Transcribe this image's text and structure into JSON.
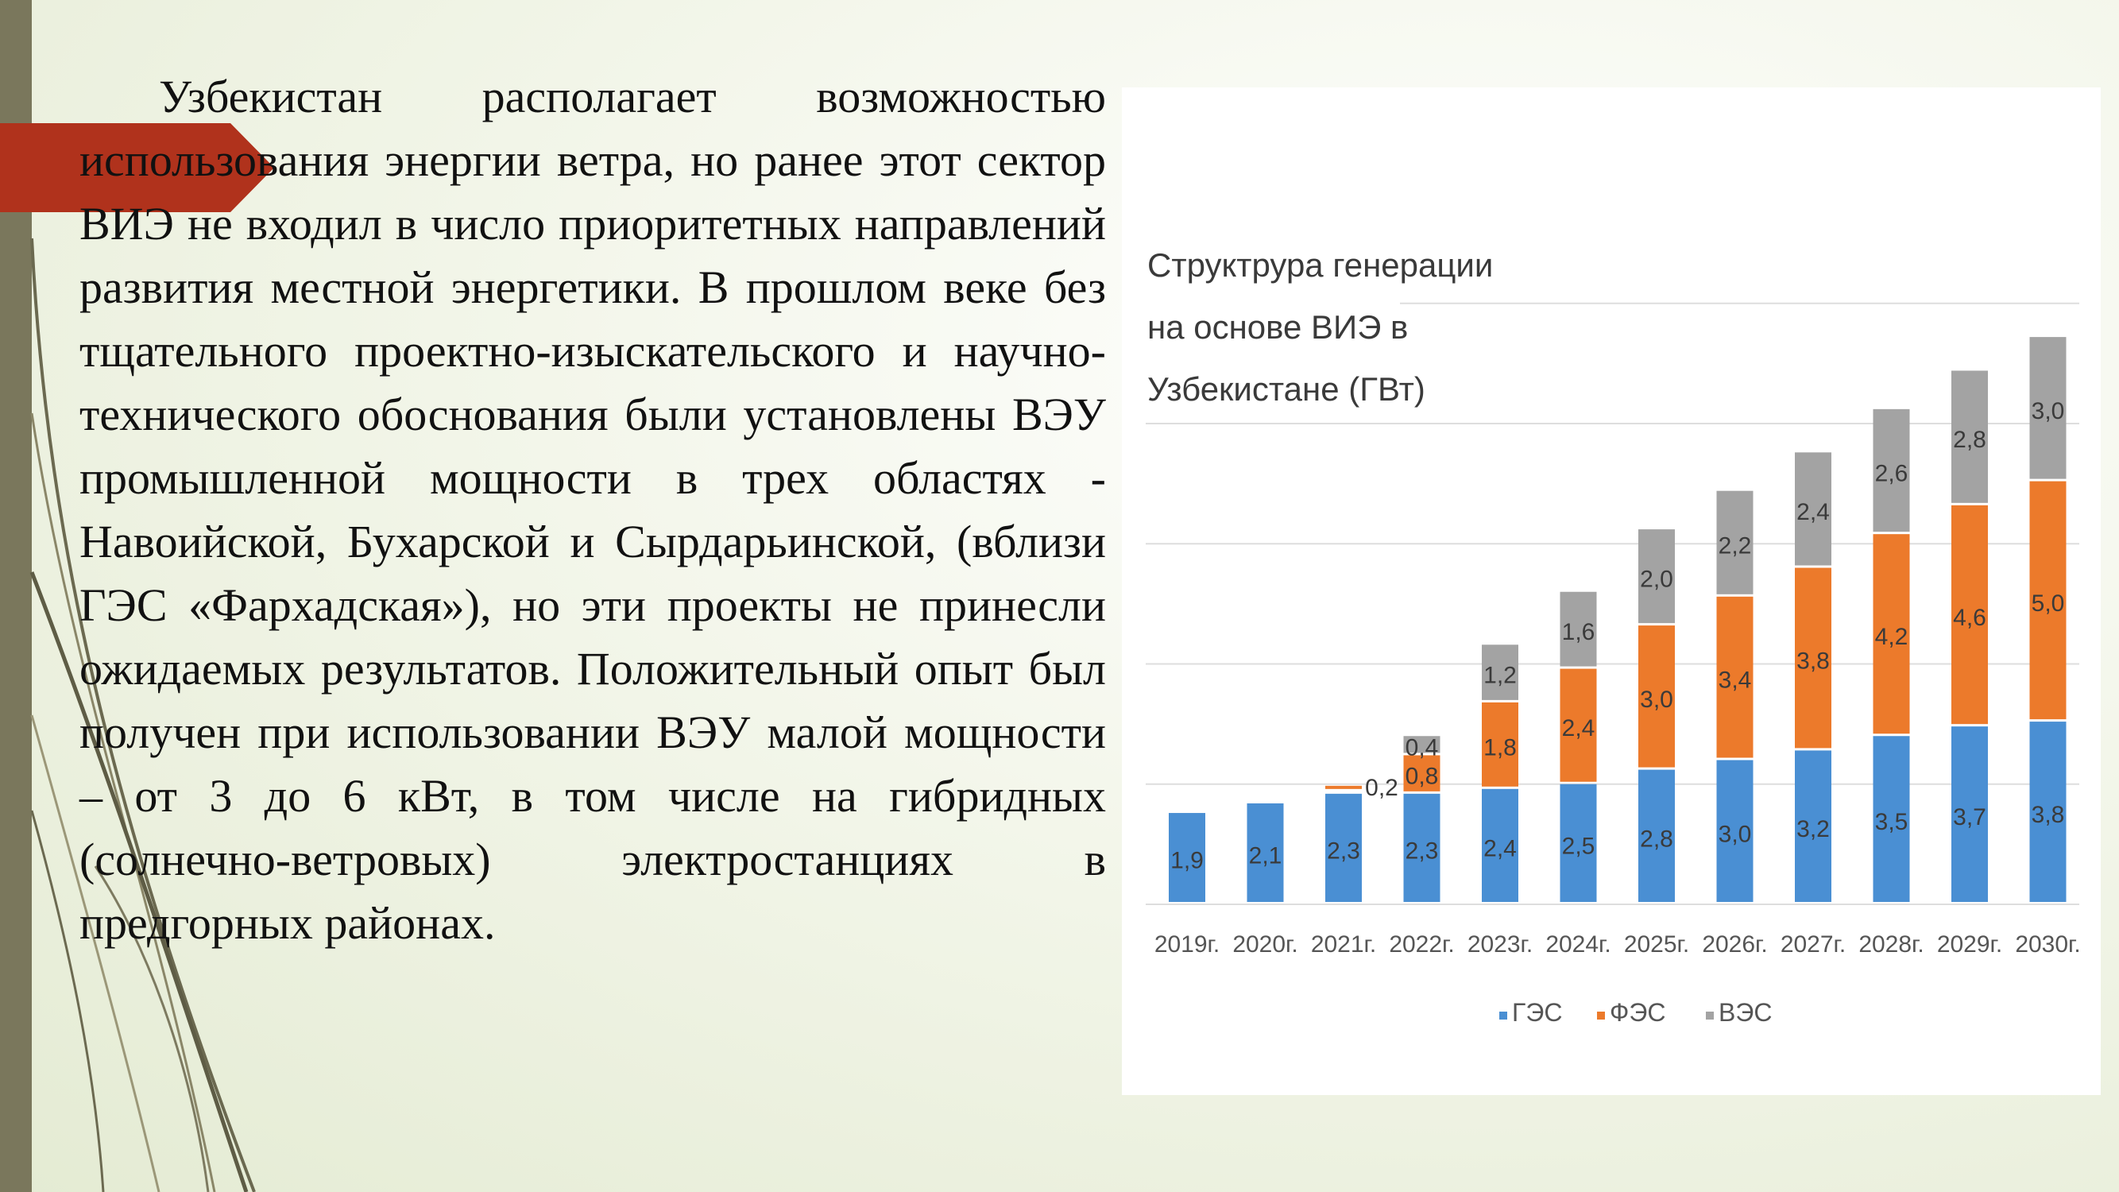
{
  "slide": {
    "paragraph": "Узбекистан располагает возможностью использования энергии ветра, но ранее этот сектор ВИЭ не входил в число приоритетных направлений развития местной энергетики. В прошлом веке без тщательного проектно-изыскательского и научно-технического обоснования были установлены ВЭУ промышленной мощности в трех областях - Навоийской, Бухарской и Сырдарьинской, (вблизи ГЭС «Фархадская»), но эти проекты не принесли ожидаемых результатов. Положительный опыт был получен при использовании ВЭУ малой мощности – от 3 до 6 кВт, в том числе на гибридных (солнечно-ветровых) электростанциях в предгорных районах."
  },
  "colors": {
    "ges": "#4a8fd3",
    "fes": "#ec7a2b",
    "ves": "#a3a3a3",
    "accent": "#b0321c",
    "strip": "#7a775c"
  },
  "chart_data": {
    "type": "bar",
    "stacked": true,
    "title_lines": [
      "Структрура генерации",
      "на основе ВИЭ в",
      "Узбекистане (ГВт)"
    ],
    "categories": [
      "2019г.",
      "2020г.",
      "2021г.",
      "2022г.",
      "2023г.",
      "2024г.",
      "2025г.",
      "2026г.",
      "2027г.",
      "2028г.",
      "2029г.",
      "2030г."
    ],
    "series": [
      {
        "name": "ГЭС",
        "values": [
          1.9,
          2.1,
          2.3,
          2.3,
          2.4,
          2.5,
          2.8,
          3.0,
          3.2,
          3.5,
          3.7,
          3.8
        ],
        "labels": [
          "1,9",
          "2,1",
          "2,3",
          "2,3",
          "2,4",
          "2,5",
          "2,8",
          "3,0",
          "3,2",
          "3,5",
          "3,7",
          "3,8"
        ]
      },
      {
        "name": "ФЭС",
        "values": [
          0,
          0,
          0,
          0.8,
          1.8,
          2.4,
          3.0,
          3.4,
          3.8,
          4.2,
          4.6,
          5.0
        ],
        "labels": [
          "",
          "",
          "",
          "0,8",
          "1,8",
          "2,4",
          "3,0",
          "3,4",
          "3,8",
          "4,2",
          "4,6",
          "5,0"
        ]
      },
      {
        "name": "ВЭС",
        "values": [
          0,
          0,
          0,
          0.4,
          1.2,
          1.6,
          2.0,
          2.2,
          2.4,
          2.6,
          2.8,
          3.0
        ],
        "labels": [
          "",
          "",
          "",
          "0,4",
          "1,2",
          "1,6",
          "2,0",
          "2,2",
          "2,4",
          "2,6",
          "2,8",
          "3,0"
        ]
      }
    ],
    "annotations": [
      {
        "category": "2021г.",
        "value": 0.2,
        "label": "0,2"
      }
    ],
    "ylim": [
      0,
      13
    ],
    "grid": true,
    "legend": "bottom-center"
  }
}
